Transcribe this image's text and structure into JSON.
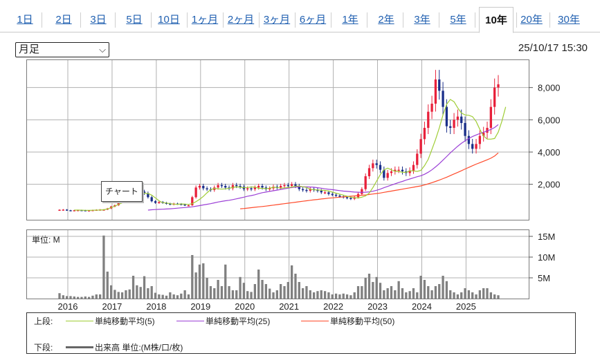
{
  "tabs": [
    {
      "label": "1日"
    },
    {
      "label": "2日"
    },
    {
      "label": "3日"
    },
    {
      "label": "5日"
    },
    {
      "label": "10日"
    },
    {
      "label": "1ヶ月"
    },
    {
      "label": "2ヶ月"
    },
    {
      "label": "3ヶ月"
    },
    {
      "label": "6ヶ月"
    },
    {
      "label": "1年"
    },
    {
      "label": "2年"
    },
    {
      "label": "3年"
    },
    {
      "label": "5年"
    },
    {
      "label": "10年"
    },
    {
      "label": "20年"
    },
    {
      "label": "30年"
    }
  ],
  "active_tab": "10年",
  "period_select": {
    "value": "月足",
    "chevron_icon": "chevron-down-icon"
  },
  "timestamp": "25/10/17 15:30",
  "callout": "チャート",
  "volume_unit_label": "単位: M",
  "legend": {
    "upper_label": "上段:",
    "lower_label": "下段:",
    "ma5": "単純移動平均(5)",
    "ma25": "単純移動平均(25)",
    "ma50": "単純移動平均(50)",
    "volume": "出来高 単位:(M株/口/枚)"
  },
  "colors": {
    "up": "#e8203a",
    "down": "#1a2f8a",
    "ma5": "#9fcd35",
    "ma25": "#9b3fd6",
    "ma50": "#ff4a2a",
    "volume": "#808080"
  },
  "chart_data": {
    "type": "candlestick",
    "x_ticks": [
      "2016",
      "2017",
      "2018",
      "2019",
      "2020",
      "2021",
      "2022",
      "2023",
      "2024",
      "2025"
    ],
    "price_ticks": [
      "2,000",
      "4,000",
      "6,000",
      "8,000"
    ],
    "price_ylim": [
      -200,
      9700
    ],
    "volume_ticks": [
      "5M",
      "10M",
      "15M"
    ],
    "volume_ylim": [
      0,
      16.5
    ],
    "years": [
      {
        "year": 2016,
        "price": [
          420,
          430,
          390,
          380,
          390,
          400,
          390,
          380,
          380,
          400,
          420,
          430
        ],
        "volume": [
          1.3,
          0.8,
          0.6,
          0.6,
          0.5,
          0.4,
          0.4,
          0.5,
          0.4,
          0.7,
          1.0,
          1.0
        ]
      },
      {
        "year": 2017,
        "price": [
          430,
          500,
          620,
          700,
          900,
          1050,
          1150,
          1300,
          1400,
          1500,
          1550,
          1450
        ],
        "volume": [
          15.2,
          6.5,
          3.2,
          2.1,
          1.6,
          1.5,
          2.0,
          2.2,
          5.5,
          3.2,
          2.8,
          5.4
        ]
      },
      {
        "year": 2018,
        "price": [
          1200,
          950,
          850,
          900,
          850,
          800,
          750,
          800,
          780,
          750,
          700,
          700
        ],
        "volume": [
          2.5,
          3.0,
          1.4,
          1.0,
          0.9,
          0.7,
          1.5,
          1.0,
          0.8,
          1.2,
          2.0,
          1.0
        ]
      },
      {
        "year": 2019,
        "price": [
          1200,
          1800,
          1900,
          1750,
          1700,
          1650,
          1800,
          1950,
          1900,
          1800,
          1750,
          1950
        ],
        "volume": [
          10.5,
          6.3,
          8.2,
          8.5,
          5.0,
          3.0,
          2.5,
          4.5,
          3.0,
          8.2,
          3.0,
          2.0
        ]
      },
      {
        "year": 2020,
        "price": [
          1900,
          1850,
          1700,
          1750,
          1700,
          1800,
          1900,
          1800,
          1700,
          1750,
          1850,
          1800
        ],
        "volume": [
          2.0,
          5.2,
          3.8,
          1.8,
          1.6,
          3.5,
          7.0,
          4.5,
          3.5,
          2.4,
          1.5,
          2.0
        ]
      },
      {
        "year": 2021,
        "price": [
          1900,
          1950,
          1900,
          2000,
          1900,
          1700,
          1650,
          1600,
          1700,
          1650,
          1600,
          1500
        ],
        "volume": [
          3.5,
          3.0,
          4.0,
          8.0,
          6.0,
          4.0,
          2.5,
          3.0,
          2.0,
          1.5,
          1.8,
          2.0
        ]
      },
      {
        "year": 2022,
        "price": [
          1500,
          1400,
          1350,
          1300,
          1250,
          1200,
          1150,
          1100,
          1200,
          1400,
          1700,
          2500
        ],
        "volume": [
          1.8,
          1.5,
          1.0,
          1.2,
          1.0,
          1.2,
          1.0,
          0.8,
          1.5,
          3.0,
          3.0,
          5.0
        ]
      },
      {
        "year": 2023,
        "price": [
          3000,
          3300,
          3200,
          2900,
          2400,
          2700,
          2800,
          2900,
          2900,
          2800,
          2700,
          2850
        ],
        "volume": [
          6.0,
          4.0,
          5.2,
          3.8,
          2.0,
          2.5,
          3.0,
          2.0,
          4.2,
          2.5,
          1.5,
          1.8
        ]
      },
      {
        "year": 2024,
        "price": [
          3200,
          3900,
          4800,
          5500,
          6500,
          7000,
          8500,
          7800,
          6800,
          5600,
          5500,
          6000
        ],
        "volume": [
          2.5,
          1.5,
          5.5,
          4.5,
          3.0,
          2.0,
          3.0,
          3.5,
          5.5,
          4.2,
          2.0,
          1.5
        ]
      },
      {
        "year": 2025,
        "price": [
          6200,
          5800,
          5000,
          4500,
          4200,
          4500,
          5000,
          5200,
          5500,
          6800,
          8000,
          8200
        ],
        "volume": [
          1.0,
          1.5,
          2.5,
          2.0,
          1.5,
          1.0,
          2.0,
          2.5,
          2.5,
          1.5,
          1.0,
          0.8
        ]
      }
    ],
    "ma5": [
      null,
      null,
      null,
      null,
      400,
      400,
      395,
      388,
      385,
      392,
      400,
      405,
      420,
      470,
      550,
      650,
      750,
      850,
      980,
      1110,
      1240,
      1350,
      1440,
      1450,
      1430,
      1330,
      1160,
      980,
      860,
      840,
      800,
      770,
      760,
      780,
      770,
      750,
      800,
      920,
      1070,
      1250,
      1470,
      1670,
      1750,
      1720,
      1700,
      1720,
      1750,
      1810,
      1840,
      1820,
      1790,
      1800,
      1830,
      1830,
      1750,
      1750,
      1730,
      1760,
      1820,
      1800,
      1760,
      1780,
      1800,
      1830,
      1880,
      1890,
      1850,
      1800,
      1700,
      1660,
      1650,
      1640,
      1620,
      1580,
      1520,
      1450,
      1390,
      1330,
      1260,
      1200,
      1170,
      1150,
      1200,
      1280,
      1460,
      1800,
      2200,
      2600,
      2900,
      3000,
      2900,
      2800,
      2800,
      2740,
      2740,
      2840,
      2830,
      2800,
      2860,
      3150,
      3550,
      4160,
      4780,
      5500,
      6300,
      6960,
      7260,
      7120,
      6740,
      6420,
      6300,
      6280,
      6200,
      5900,
      5400,
      5000,
      4800,
      4800,
      4840,
      5240,
      5920,
      6800
    ],
    "ma25": [
      null,
      null,
      null,
      null,
      null,
      null,
      null,
      null,
      null,
      null,
      null,
      null,
      null,
      null,
      null,
      null,
      null,
      null,
      null,
      null,
      null,
      null,
      null,
      null,
      400,
      420,
      435,
      445,
      455,
      470,
      480,
      500,
      520,
      540,
      560,
      580,
      600,
      640,
      680,
      720,
      760,
      800,
      850,
      900,
      940,
      980,
      1010,
      1050,
      1100,
      1150,
      1200,
      1260,
      1300,
      1350,
      1420,
      1480,
      1520,
      1560,
      1600,
      1640,
      1680,
      1720,
      1760,
      1800,
      1830,
      1840,
      1850,
      1840,
      1830,
      1820,
      1790,
      1760,
      1720,
      1690,
      1670,
      1640,
      1610,
      1580,
      1560,
      1540,
      1520,
      1510,
      1500,
      1510,
      1530,
      1570,
      1630,
      1700,
      1790,
      1870,
      1950,
      2030,
      2110,
      2180,
      2260,
      2330,
      2400,
      2470,
      2530,
      2620,
      2750,
      2900,
      3080,
      3280,
      3500,
      3720,
      3950,
      4160,
      4360,
      4540,
      4700,
      4840,
      4960,
      5060,
      5150,
      5230,
      5310,
      5400,
      5520,
      5700
    ],
    "ma50": [
      null,
      null,
      null,
      null,
      null,
      null,
      null,
      null,
      null,
      null,
      null,
      null,
      null,
      null,
      null,
      null,
      null,
      null,
      null,
      null,
      null,
      null,
      null,
      null,
      null,
      null,
      null,
      null,
      null,
      null,
      null,
      null,
      null,
      null,
      null,
      null,
      null,
      null,
      null,
      null,
      null,
      null,
      null,
      null,
      null,
      null,
      null,
      null,
      null,
      480,
      500,
      525,
      550,
      575,
      600,
      625,
      650,
      680,
      710,
      740,
      770,
      800,
      830,
      860,
      890,
      920,
      950,
      980,
      1010,
      1040,
      1060,
      1090,
      1110,
      1140,
      1160,
      1180,
      1200,
      1220,
      1240,
      1260,
      1280,
      1300,
      1320,
      1340,
      1370,
      1400,
      1430,
      1460,
      1500,
      1540,
      1580,
      1620,
      1660,
      1700,
      1740,
      1780,
      1820,
      1860,
      1900,
      1960,
      2030,
      2100,
      2180,
      2260,
      2350,
      2440,
      2540,
      2640,
      2740,
      2840,
      2950,
      3050,
      3150,
      3250,
      3340,
      3430,
      3520,
      3620,
      3750,
      3950
    ]
  }
}
